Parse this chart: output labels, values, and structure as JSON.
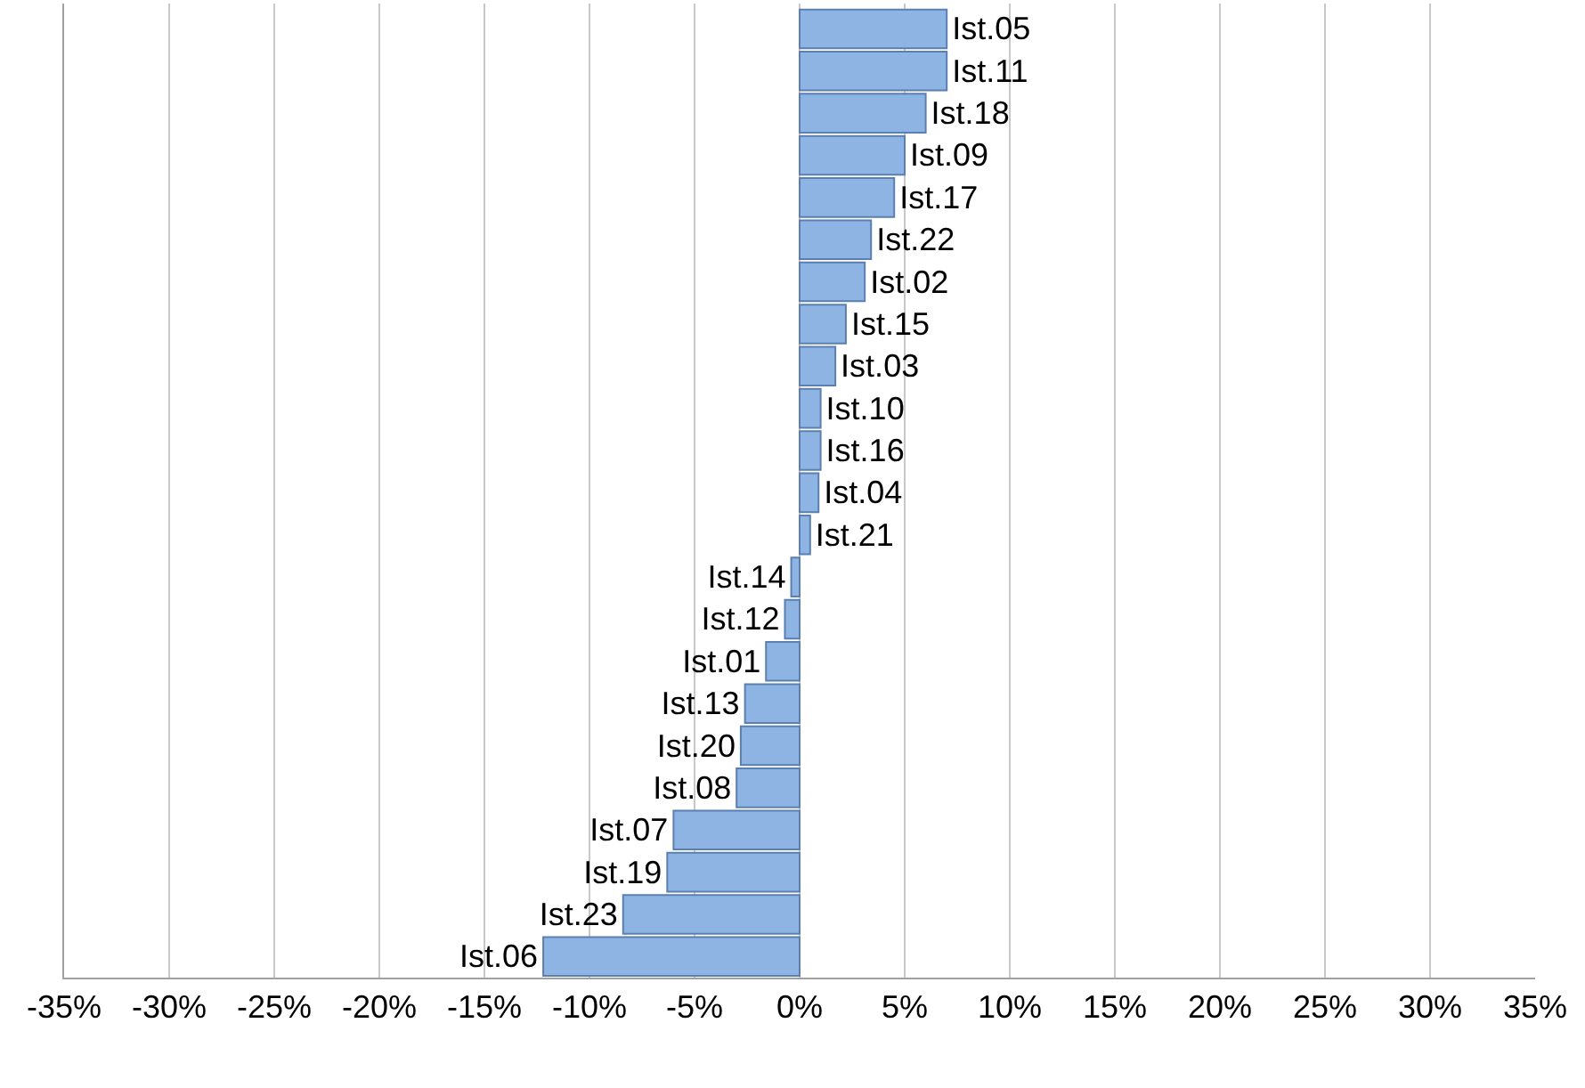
{
  "chart_data": {
    "type": "bar",
    "orientation": "horizontal",
    "tick_labels": "x",
    "grid": "x",
    "categories": [
      "Ist.05",
      "Ist.11",
      "Ist.18",
      "Ist.09",
      "Ist.17",
      "Ist.22",
      "Ist.02",
      "Ist.15",
      "Ist.03",
      "Ist.10",
      "Ist.16",
      "Ist.04",
      "Ist.21",
      "Ist.14",
      "Ist.12",
      "Ist.01",
      "Ist.13",
      "Ist.20",
      "Ist.08",
      "Ist.07",
      "Ist.19",
      "Ist.23",
      "Ist.06"
    ],
    "values": [
      7.0,
      7.0,
      6.0,
      5.0,
      4.5,
      3.4,
      3.1,
      2.2,
      1.7,
      1.0,
      1.0,
      0.9,
      0.5,
      -0.4,
      -0.7,
      -1.6,
      -2.6,
      -2.8,
      -3.0,
      -6.0,
      -6.3,
      -8.4,
      -12.2
    ],
    "color": "#8db4e2",
    "xlim": [
      -35,
      35
    ],
    "xticks": [
      {
        "value": -35,
        "label": "-35%"
      },
      {
        "value": -30,
        "label": "-30%"
      },
      {
        "value": -25,
        "label": "-25%"
      },
      {
        "value": -20,
        "label": "-20%"
      },
      {
        "value": -15,
        "label": "-15%"
      },
      {
        "value": -10,
        "label": "-10%"
      },
      {
        "value": -5,
        "label": "-5%"
      },
      {
        "value": 0,
        "label": "0%"
      },
      {
        "value": 5,
        "label": "5%"
      },
      {
        "value": 10,
        "label": "10%"
      },
      {
        "value": 15,
        "label": "15%"
      },
      {
        "value": 20,
        "label": "20%"
      },
      {
        "value": 25,
        "label": "25%"
      },
      {
        "value": 30,
        "label": "30%"
      },
      {
        "value": 35,
        "label": "35%"
      }
    ]
  }
}
